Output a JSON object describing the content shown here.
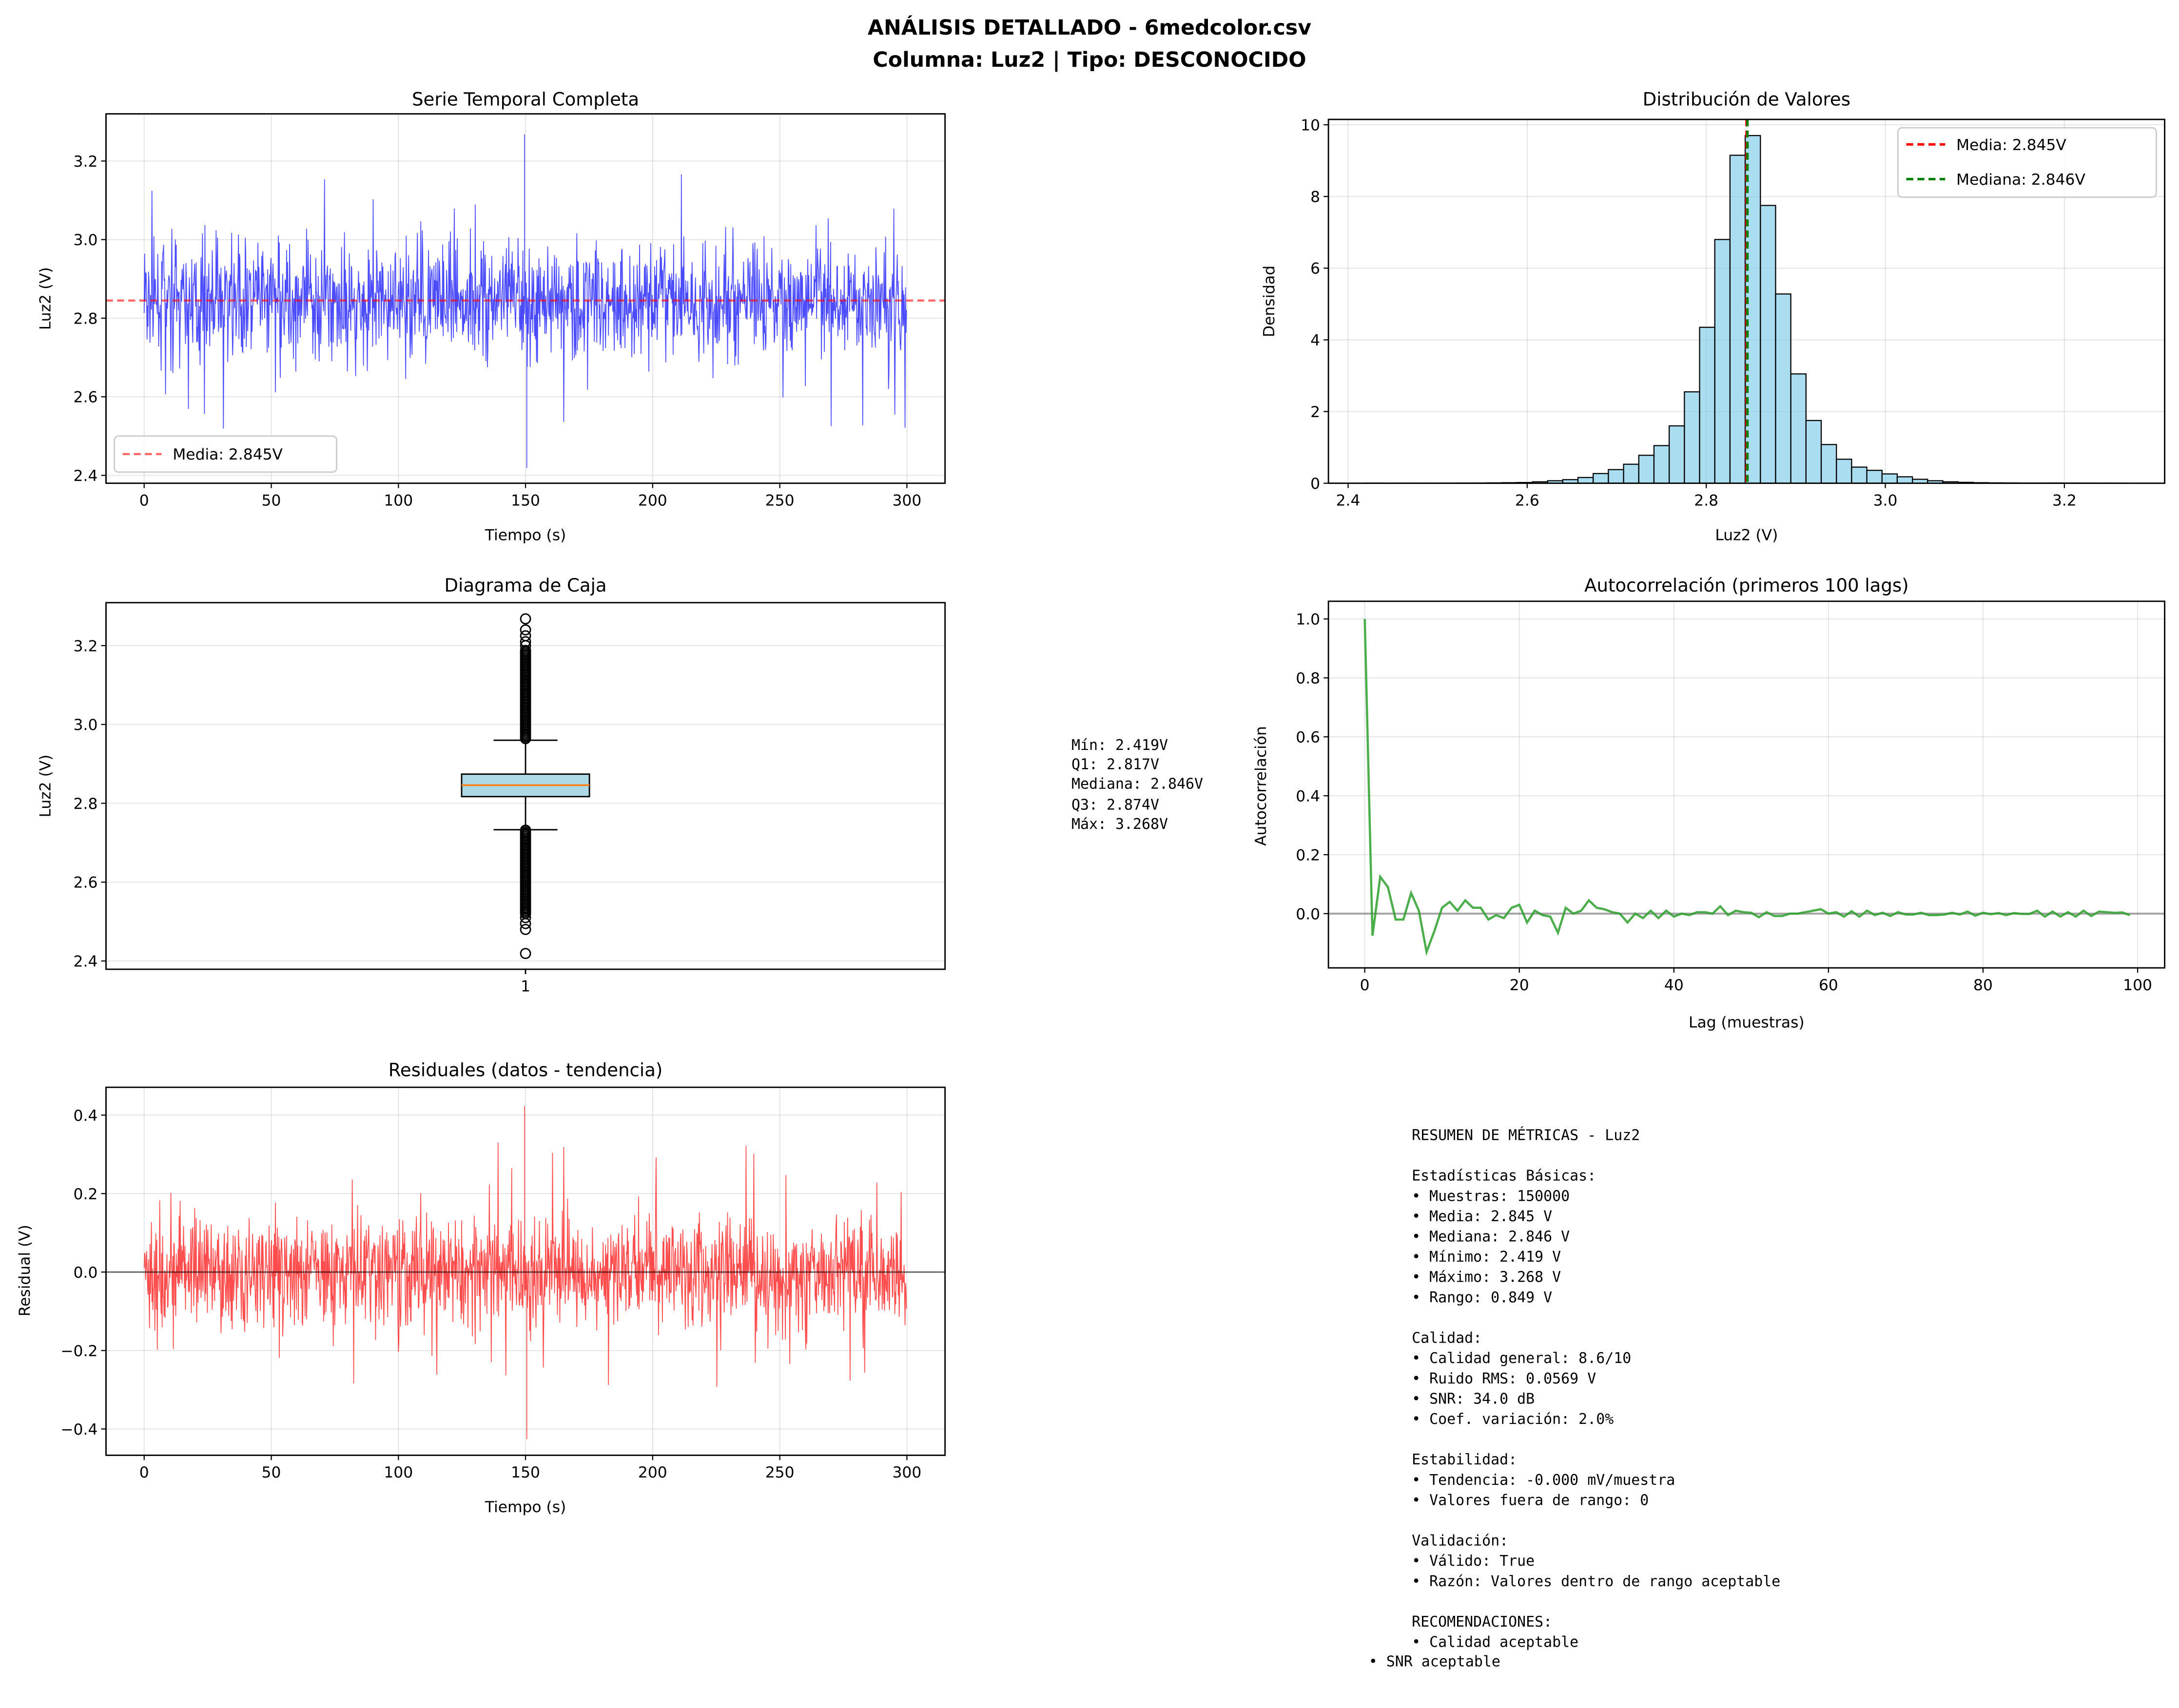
{
  "figure": {
    "title_line1": "ANÁLISIS DETALLADO - 6medcolor.csv",
    "title_line2": "Columna: Luz2 | Tipo: DESCONOCIDO"
  },
  "chart_data": [
    {
      "id": "timeseries",
      "type": "line",
      "title": "Serie Temporal Completa",
      "xlabel": "Tiempo (s)",
      "ylabel": "Luz2 (V)",
      "xlim": [
        -15,
        315
      ],
      "ylim": [
        2.38,
        3.32
      ],
      "xticks": [
        0,
        50,
        100,
        150,
        200,
        250,
        300
      ],
      "yticks": [
        2.4,
        2.6,
        2.8,
        3.0,
        3.2
      ],
      "ytick_labels": [
        "2.4",
        "2.6",
        "2.8",
        "3.0",
        "3.2"
      ],
      "series": [
        {
          "x_range": [
            0,
            300
          ],
          "samples": 150000,
          "mean": 2.845,
          "min": 2.419,
          "max": 3.268,
          "noise_rms": 0.0569,
          "color": "#0000ff"
        }
      ],
      "hlines": [
        {
          "y": 2.845,
          "name": "Media: 2.845V",
          "color": "#ff0000",
          "style": "dashed"
        }
      ],
      "legend": "lower-left",
      "grid": true
    },
    {
      "id": "histogram",
      "type": "bar",
      "title": "Distribución de Valores",
      "xlabel": "Luz2 (V)",
      "ylabel": "Densidad",
      "xlim": [
        2.378,
        3.312
      ],
      "ylim": [
        0,
        10.15
      ],
      "xticks": [
        2.4,
        2.6,
        2.8,
        3.0,
        3.2
      ],
      "xtick_labels": [
        "2.4",
        "2.6",
        "2.8",
        "3.0",
        "3.2"
      ],
      "yticks": [
        0,
        2,
        4,
        6,
        8,
        10
      ],
      "bin_range": [
        2.419,
        3.268
      ],
      "densities": [
        0.003,
        0.001,
        0.002,
        0.002,
        0.002,
        0.003,
        0.004,
        0.006,
        0.01,
        0.015,
        0.02,
        0.04,
        0.07,
        0.1,
        0.16,
        0.27,
        0.38,
        0.53,
        0.78,
        1.05,
        1.6,
        2.55,
        4.35,
        6.8,
        9.15,
        9.7,
        7.75,
        5.28,
        3.05,
        1.75,
        1.08,
        0.67,
        0.45,
        0.36,
        0.26,
        0.18,
        0.11,
        0.07,
        0.04,
        0.025,
        0.015,
        0.01,
        0.008,
        0.005,
        0.004,
        0.006,
        0.004,
        0.003,
        0.002,
        0.002
      ],
      "bar_color": "#87ceeb",
      "vlines": [
        {
          "x": 2.845,
          "name": "Media: 2.845V",
          "color": "#ff0000"
        },
        {
          "x": 2.846,
          "name": "Mediana: 2.846V",
          "color": "#008000"
        }
      ],
      "legend": "top-right",
      "grid": true
    },
    {
      "id": "boxplot",
      "type": "box",
      "title": "Diagrama de Caja",
      "ylabel": "Luz2 (V)",
      "ylim": [
        2.379,
        3.309
      ],
      "yticks": [
        2.4,
        2.6,
        2.8,
        3.0,
        3.2
      ],
      "ytick_labels": [
        "2.4",
        "2.6",
        "2.8",
        "3.0",
        "3.2"
      ],
      "xtick_labels": [
        "1"
      ],
      "min": 2.419,
      "q1": 2.817,
      "median": 2.846,
      "q3": 2.874,
      "max": 3.268,
      "whisker_low": 2.733,
      "whisker_high": 2.96,
      "box_color": "#add8e6",
      "median_color": "#ff7f0e",
      "stats_text": [
        "Mín: 2.419V",
        "Q1: 2.817V",
        "Mediana: 2.846V",
        "Q3: 2.874V",
        "Máx: 3.268V"
      ],
      "grid": true
    },
    {
      "id": "autocorrelation",
      "type": "line",
      "title": "Autocorrelación (primeros 100 lags)",
      "xlabel": "Lag (muestras)",
      "ylabel": "Autocorrelación",
      "xlim": [
        -4.7,
        103.5
      ],
      "ylim": [
        -0.184,
        1.06
      ],
      "xticks": [
        0,
        20,
        40,
        60,
        80,
        100
      ],
      "yticks": [
        0.0,
        0.2,
        0.4,
        0.6,
        0.8,
        1.0
      ],
      "ytick_labels": [
        "0.0",
        "0.2",
        "0.4",
        "0.6",
        "0.8",
        "1.0"
      ],
      "color": "#2ca02c",
      "values": [
        1.0,
        -0.075,
        0.125,
        0.09,
        -0.02,
        -0.02,
        0.07,
        0.01,
        -0.13,
        -0.06,
        0.02,
        0.04,
        0.01,
        0.045,
        0.02,
        0.02,
        -0.02,
        -0.005,
        -0.015,
        0.02,
        0.03,
        -0.03,
        0.01,
        -0.005,
        -0.01,
        -0.065,
        0.02,
        0.0,
        0.01,
        0.045,
        0.02,
        0.015,
        0.005,
        0.0,
        -0.03,
        0.0,
        -0.015,
        0.01,
        -0.015,
        0.01,
        -0.01,
        0.0,
        -0.005,
        0.005,
        0.005,
        0.0,
        0.025,
        -0.005,
        0.01,
        0.005,
        0.003,
        -0.012,
        0.005,
        -0.008,
        -0.008,
        0.0,
        0.0,
        0.005,
        0.01,
        0.015,
        0.0,
        0.005,
        -0.01,
        0.008,
        -0.01,
        0.01,
        -0.005,
        0.003,
        -0.008,
        0.005,
        -0.003,
        -0.003,
        0.003,
        -0.005,
        -0.005,
        -0.003,
        0.003,
        -0.003,
        0.007,
        -0.007,
        0.003,
        -0.002,
        0.002,
        -0.005,
        0.002,
        -0.001,
        -0.001,
        0.01,
        -0.01,
        0.007,
        -0.01,
        0.005,
        -0.01,
        0.01,
        -0.008,
        0.007,
        0.005,
        0.003,
        0.004,
        -0.005
      ],
      "hlines": [
        {
          "y": 0
        }
      ],
      "grid": true
    },
    {
      "id": "residuals",
      "type": "line",
      "title": "Residuales (datos - tendencia)",
      "xlabel": "Tiempo (s)",
      "ylabel": "Residual (V)",
      "xlim": [
        -15,
        315
      ],
      "ylim": [
        -0.467,
        0.471
      ],
      "xticks": [
        0,
        50,
        100,
        150,
        200,
        250,
        300
      ],
      "yticks": [
        -0.4,
        -0.2,
        0.0,
        0.2,
        0.4
      ],
      "ytick_labels": [
        "−0.4",
        "−0.2",
        "0.0",
        "0.2",
        "0.4"
      ],
      "series": [
        {
          "x_range": [
            0,
            300
          ],
          "min": -0.426,
          "max": 0.423,
          "noise_rms": 0.0569,
          "color": "#ff0000"
        }
      ],
      "hlines": [
        {
          "y": 0
        }
      ],
      "grid": true
    }
  ],
  "summary": {
    "lines": [
      "RESUMEN DE MÉTRICAS - Luz2",
      "",
      "Estadísticas Básicas:",
      "• Muestras: 150000",
      "• Media: 2.845 V",
      "• Mediana: 2.846 V",
      "• Mínimo: 2.419 V",
      "• Máximo: 3.268 V",
      "• Rango: 0.849 V",
      "",
      "Calidad:",
      "• Calidad general: 8.6/10",
      "• Ruido RMS: 0.0569 V",
      "• SNR: 34.0 dB",
      "• Coef. variación: 2.0%",
      "",
      "Estabilidad:",
      "• Tendencia: -0.000 mV/muestra",
      "• Valores fuera de rango: 0",
      "",
      "Validación:",
      "• Válido: True",
      "• Razón: Valores dentro de rango aceptable",
      "",
      "RECOMENDACIONES:",
      "• Calidad aceptable"
    ],
    "last_line": "• SNR aceptable"
  }
}
